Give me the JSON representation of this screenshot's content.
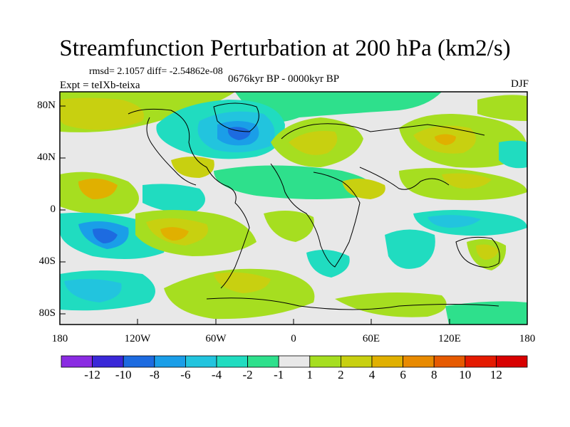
{
  "title": "Streamfunction Perturbation at 200 hPa (km2/s)",
  "stats": "rmsd= 2.1057 diff= -2.54862e-08",
  "expt": "Expt = teIXb-teixa",
  "period": "0676kyr BP - 0000kyr BP",
  "season": "DJF",
  "lat_labels": [
    "80N",
    "40N",
    "0",
    "40S",
    "80S"
  ],
  "lon_labels": [
    "180",
    "120W",
    "60W",
    "0",
    "60E",
    "120E",
    "180"
  ],
  "colorbar": {
    "labels": [
      "-12",
      "-10",
      "-8",
      "-6",
      "-4",
      "-2",
      "-1",
      "1",
      "2",
      "4",
      "6",
      "8",
      "10",
      "12"
    ],
    "colors": [
      "#8a2be2",
      "#3a28d8",
      "#1d6be0",
      "#1a9ee8",
      "#22c4de",
      "#20dcc0",
      "#2ee08c",
      "#e8e8e8",
      "#a6de20",
      "#c8d010",
      "#e0b000",
      "#e88a00",
      "#e65a00",
      "#e41a00",
      "#d80000"
    ]
  }
}
